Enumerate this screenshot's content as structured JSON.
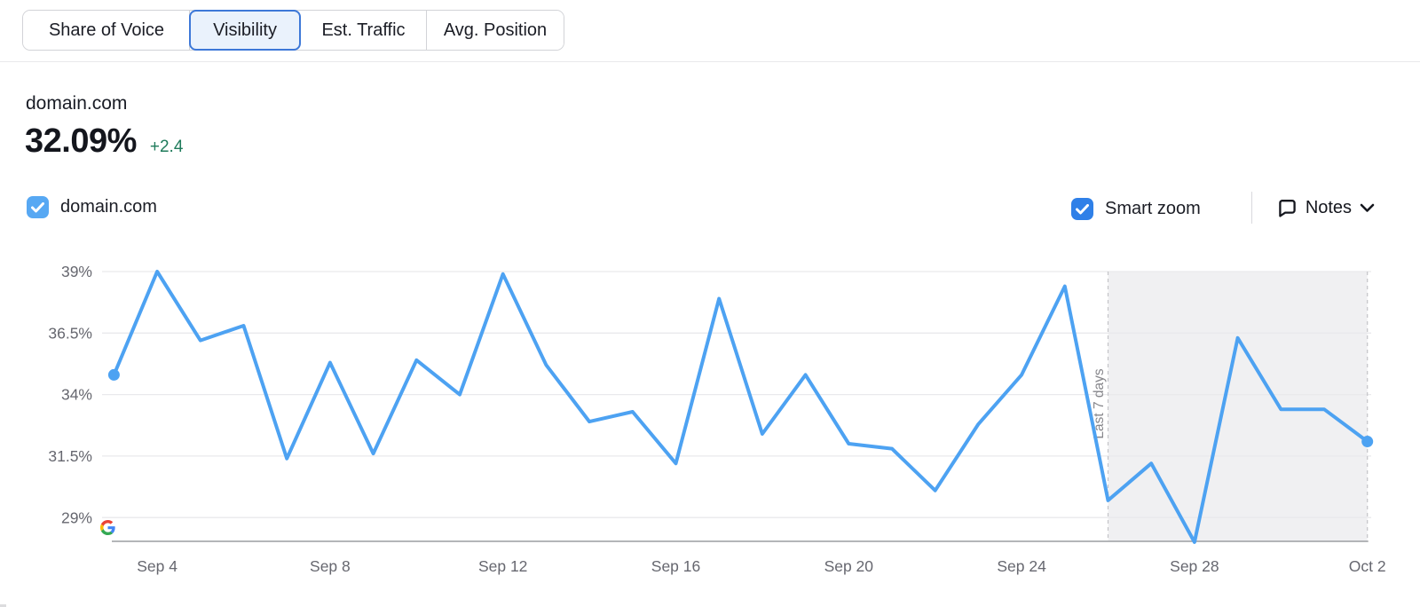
{
  "tabs": {
    "items": [
      {
        "label": "Share of Voice",
        "selected": false
      },
      {
        "label": "Visibility",
        "selected": true
      },
      {
        "label": "Est. Traffic",
        "selected": false
      },
      {
        "label": "Avg. Position",
        "selected": false
      }
    ]
  },
  "metric": {
    "domain": "domain.com",
    "value": "32.09%",
    "change": "+2.4"
  },
  "legend": {
    "label": "domain.com",
    "checked": true
  },
  "controls": {
    "smart_zoom_label": "Smart zoom",
    "smart_zoom_checked": true,
    "notes_label": "Notes",
    "notes_icon": "speech-bubble-icon",
    "notes_expander": "chevron-down-icon"
  },
  "colors": {
    "series_line": "#4da2f2",
    "legend_checkbox": "#57a8f3",
    "control_checkbox": "#2f80e8",
    "selected_tab_border": "#3d78d8",
    "selected_tab_bg": "#eaf2fc",
    "positive_change": "#1f7b5b",
    "axis_text": "#66676f",
    "gridline": "#e9e9ec",
    "baseline": "#9c9da1",
    "zoom_region_fill": "#f0f0f2",
    "zoom_region_border": "#c4c4c8",
    "zoom_region_text": "#87878c"
  },
  "chart_data": {
    "type": "line",
    "title": "domain.com Visibility over time",
    "source_icon": "google-icon",
    "categories": [
      "Sep 3",
      "Sep 4",
      "Sep 5",
      "Sep 6",
      "Sep 7",
      "Sep 8",
      "Sep 9",
      "Sep 10",
      "Sep 11",
      "Sep 12",
      "Sep 13",
      "Sep 14",
      "Sep 15",
      "Sep 16",
      "Sep 17",
      "Sep 18",
      "Sep 19",
      "Sep 20",
      "Sep 21",
      "Sep 22",
      "Sep 23",
      "Sep 24",
      "Sep 25",
      "Sep 26",
      "Sep 27",
      "Sep 28",
      "Sep 29",
      "Sep 30",
      "Oct 1",
      "Oct 2"
    ],
    "series": [
      {
        "name": "domain.com",
        "color": "#4da2f2",
        "values": [
          34.8,
          39.0,
          36.2,
          36.8,
          31.4,
          35.3,
          31.6,
          35.4,
          34.0,
          38.9,
          35.2,
          32.9,
          33.3,
          31.2,
          37.9,
          32.4,
          34.8,
          32.0,
          31.8,
          30.1,
          32.8,
          34.8,
          38.4,
          29.7,
          31.2,
          28.0,
          36.3,
          33.4,
          33.4,
          32.09
        ]
      }
    ],
    "y_ticks": {
      "labels": [
        "39%",
        "36.5%",
        "34%",
        "31.5%",
        "29%"
      ],
      "values": [
        39,
        36.5,
        34,
        31.5,
        29
      ]
    },
    "ylim": [
      27.8,
      39.6
    ],
    "x_ticks": [
      {
        "index": 1,
        "label": "Sep 4"
      },
      {
        "index": 5,
        "label": "Sep 8"
      },
      {
        "index": 9,
        "label": "Sep 12"
      },
      {
        "index": 13,
        "label": "Sep 16"
      },
      {
        "index": 17,
        "label": "Sep 20"
      },
      {
        "index": 21,
        "label": "Sep 24"
      },
      {
        "index": 25,
        "label": "Sep 28"
      },
      {
        "index": 29,
        "label": "Oct 2"
      }
    ],
    "grid": true,
    "legend_position": "top-left",
    "endpoint_markers": [
      0,
      29
    ],
    "smart_zoom_region": {
      "label": "Last 7 days",
      "start_index": 23,
      "end_index": 29
    }
  }
}
